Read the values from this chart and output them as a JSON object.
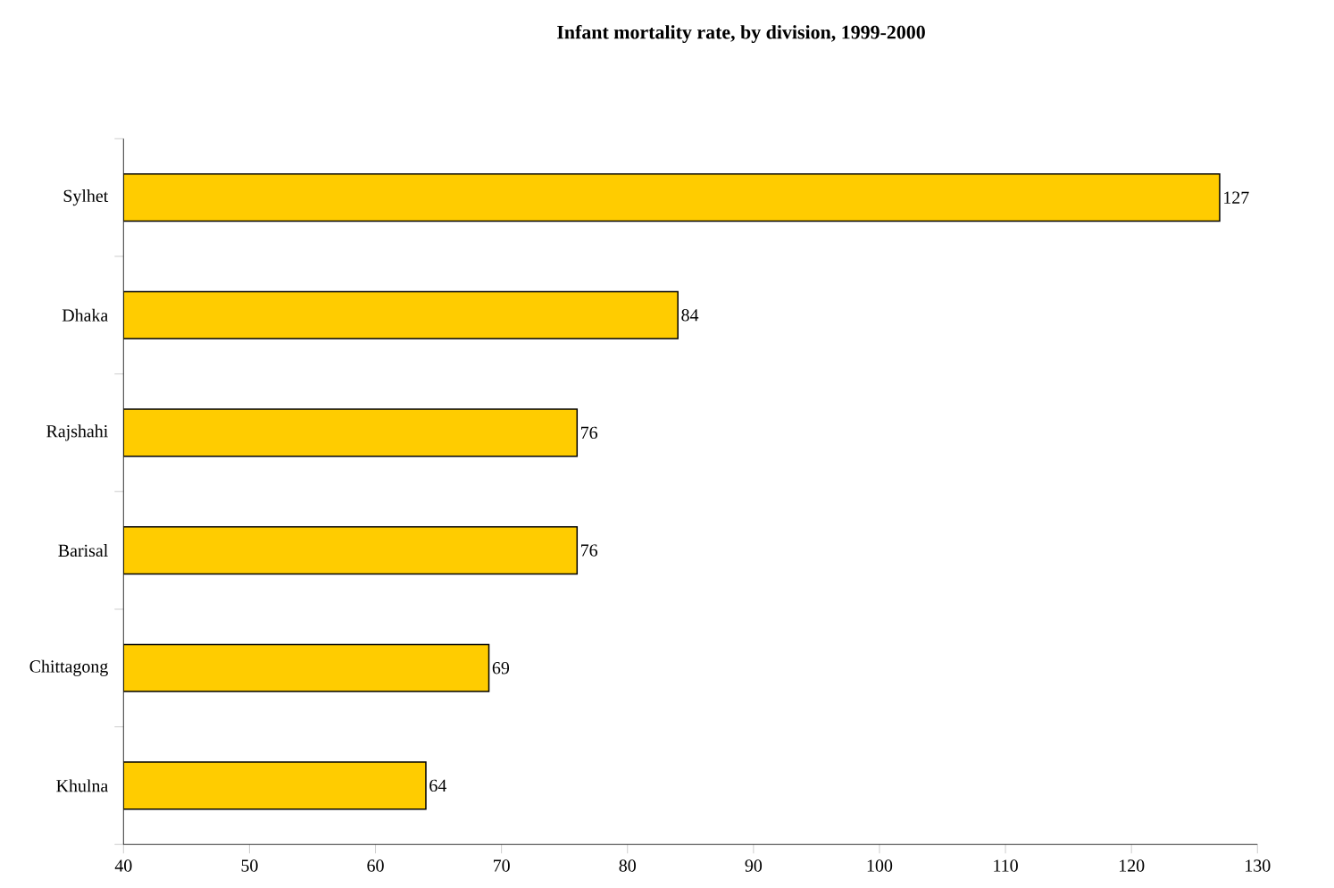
{
  "chart_data": {
    "type": "bar",
    "orientation": "horizontal",
    "title": "Infant mortality rate, by division, 1999-2000",
    "categories": [
      "Sylhet",
      "Dhaka",
      "Rajshahi",
      "Barisal",
      "Chittagong",
      "Khulna"
    ],
    "values": [
      127,
      84,
      76,
      76,
      69,
      64
    ],
    "color": "#ffcc00",
    "data_labels": true,
    "grid": false,
    "xlim": [
      40,
      130
    ],
    "xticks": [
      40,
      50,
      60,
      70,
      80,
      90,
      100,
      110,
      120,
      130
    ]
  }
}
